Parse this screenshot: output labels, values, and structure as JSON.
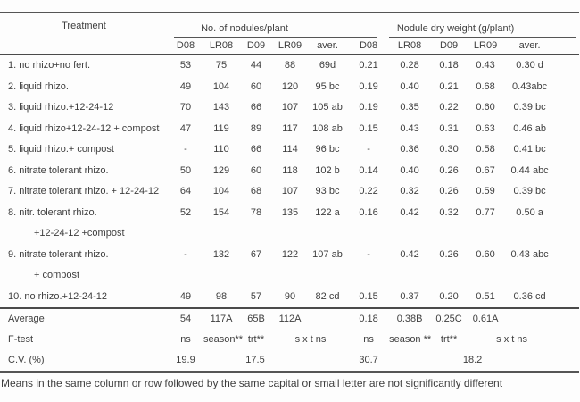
{
  "table": {
    "col_header": {
      "treatment": "Treatment",
      "group1": "No. of nodules/plant",
      "group2": "Nodule dry weight (g/plant)",
      "subcols": [
        "D08",
        "LR08",
        "D09",
        "LR09",
        "aver.",
        "D08",
        "LR08",
        "D09",
        "LR09",
        "aver."
      ]
    },
    "rows": [
      {
        "label": "1. no rhizo+no fert.",
        "label2": "",
        "values": [
          "53",
          "75",
          "44",
          "88",
          "69d",
          "0.21",
          "0.28",
          "0.18",
          "0.43",
          "0.30 d"
        ]
      },
      {
        "label": "2. liquid rhizo.",
        "label2": "",
        "values": [
          "49",
          "104",
          "60",
          "120",
          "95 bc",
          "0.19",
          "0.40",
          "0.21",
          "0.68",
          "0.43abc"
        ]
      },
      {
        "label": "3. liquid rhizo.+12-24-12",
        "label2": "",
        "values": [
          "70",
          "143",
          "66",
          "107",
          "105 ab",
          "0.19",
          "0.35",
          "0.22",
          "0.60",
          "0.39 bc"
        ]
      },
      {
        "label": "4. liquid rhizo+12-24-12 + compost",
        "label2": "",
        "values": [
          "47",
          "119",
          "89",
          "117",
          "108 ab",
          "0.15",
          "0.43",
          "0.31",
          "0.63",
          "0.46 ab"
        ]
      },
      {
        "label": "5. liquid rhizo.+ compost",
        "label2": "",
        "values": [
          "-",
          "110",
          "66",
          "114",
          "96 bc",
          "-",
          "0.36",
          "0.30",
          "0.58",
          "0.41 bc"
        ]
      },
      {
        "label": "6. nitrate tolerant rhizo.",
        "label2": "",
        "values": [
          "50",
          "129",
          "60",
          "118",
          "102 b",
          "0.14",
          "0.40",
          "0.26",
          "0.67",
          "0.44 abc"
        ]
      },
      {
        "label": "7. nitrate tolerant rhizo. + 12-24-12",
        "label2": "",
        "values": [
          "64",
          "104",
          "68",
          "107",
          "93 bc",
          "0.22",
          "0.32",
          "0.26",
          "0.59",
          "0.39 bc"
        ]
      },
      {
        "label": "8. nitr. tolerant rhizo.",
        "label2": "+12-24-12 +compost",
        "values": [
          "52",
          "154",
          "78",
          "135",
          "122 a",
          "0.16",
          "0.42",
          "0.32",
          "0.77",
          "0.50 a"
        ]
      },
      {
        "label": "9. nitrate tolerant rhizo.",
        "label2": "+ compost",
        "values": [
          "-",
          "132",
          "67",
          "122",
          "107 ab",
          "-",
          "0.42",
          "0.26",
          "0.60",
          "0.43 abc"
        ]
      },
      {
        "label": "10. no rhizo.+12-24-12",
        "label2": "",
        "values": [
          "49",
          "98",
          "57",
          "90",
          "82 cd",
          "0.15",
          "0.37",
          "0.20",
          "0.51",
          "0.36 cd"
        ]
      }
    ],
    "footer": {
      "average": {
        "label": "Average",
        "values": [
          "54",
          "117A",
          "65B",
          "112A",
          "",
          "0.18",
          "0.38B",
          "0.25C",
          "0.61A",
          ""
        ]
      },
      "ftest": {
        "label": "F-test",
        "values": [
          "ns",
          "season**",
          "trt**",
          "s x t  ns",
          "ns",
          "season **",
          "trt**",
          "s x t  ns"
        ]
      },
      "cv": {
        "label": "C.V. (%)",
        "values": [
          "19.9",
          "17.5",
          "30.7",
          "18.2"
        ]
      }
    },
    "note": "Means in the same column or row followed by the same capital or small letter are not significantly different"
  }
}
